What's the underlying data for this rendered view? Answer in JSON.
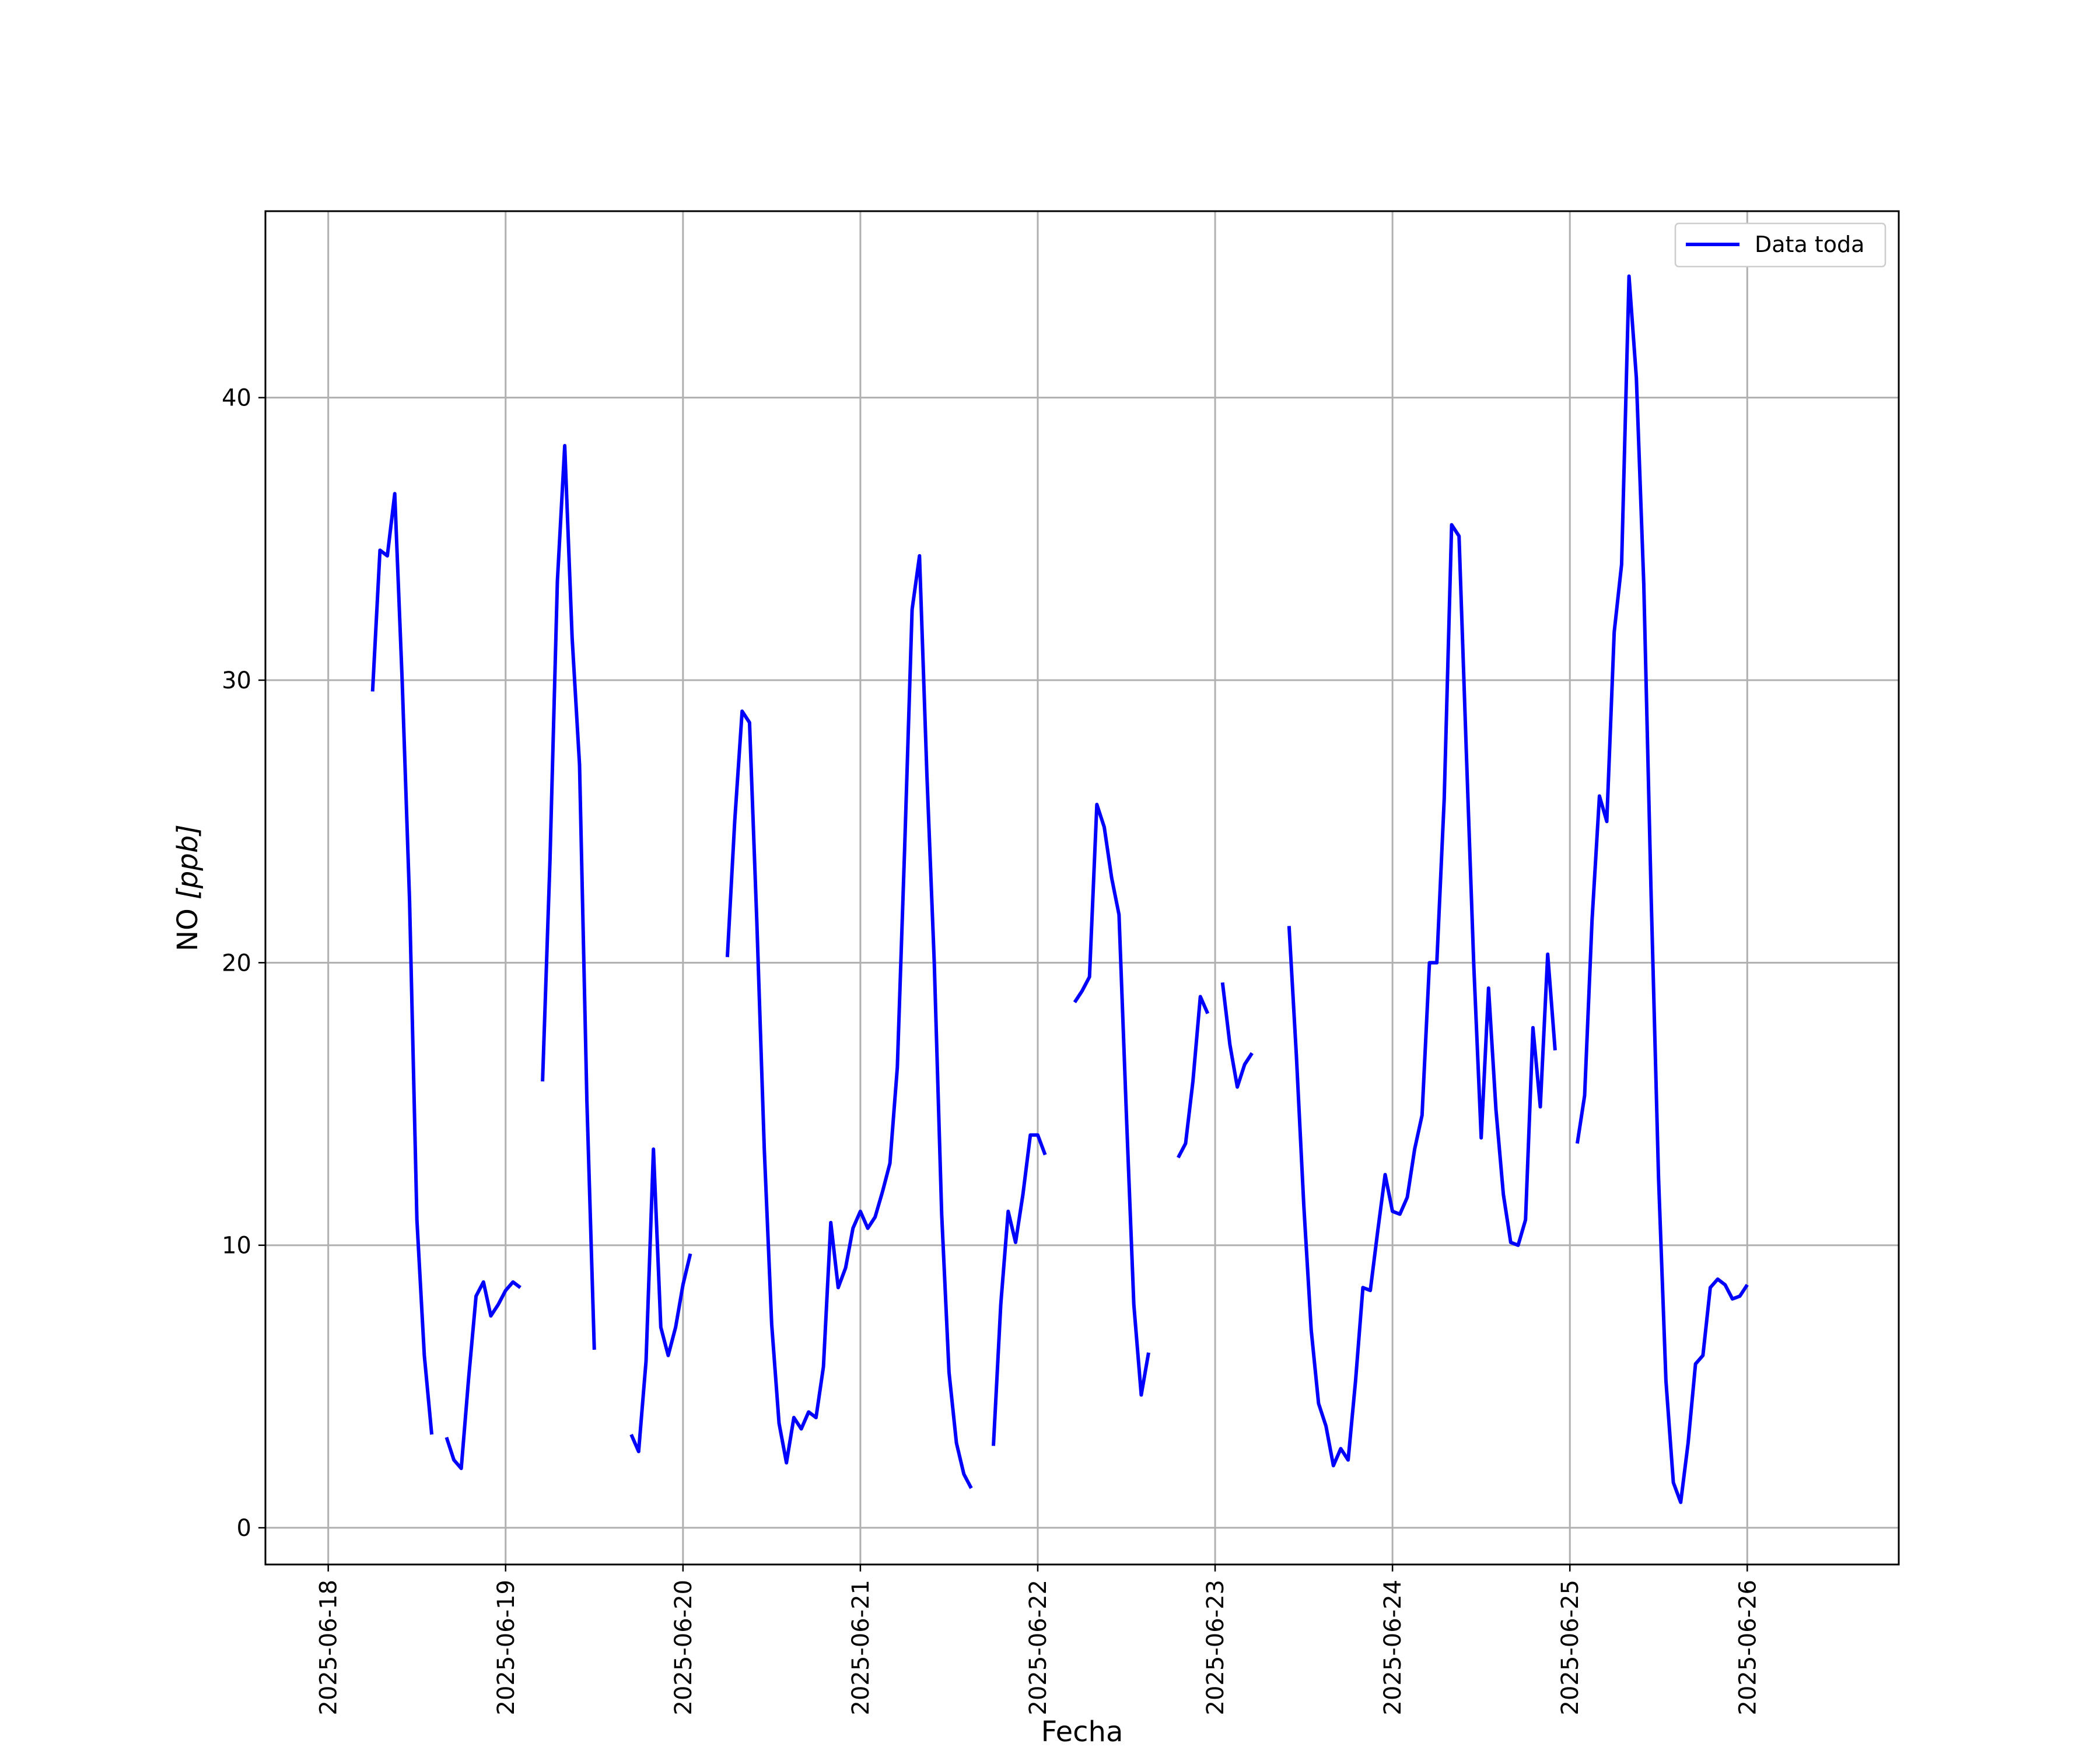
{
  "chart_data": {
    "type": "line",
    "title": "",
    "xlabel": "Fecha",
    "ylabel": "NO [ppb]",
    "ylabel_parts": {
      "name": "NO ",
      "unit": "[ppb]"
    },
    "x_tick_labels": [
      "2025-06-18",
      "2025-06-19",
      "2025-06-20",
      "2025-06-21",
      "2025-06-22",
      "2025-06-23",
      "2025-06-24",
      "2025-06-25",
      "2025-06-26"
    ],
    "y_ticks": [
      0,
      10,
      20,
      30,
      40
    ],
    "xlim": [
      "2025-06-17T15:30",
      "2025-06-26T20:30"
    ],
    "ylim": [
      -1.3,
      46.6
    ],
    "grid": true,
    "legend_position": "top-right",
    "series": [
      {
        "name": "Data toda",
        "color": "#0000ff",
        "segments": [
          [
            [
              "2025-06-18T06:00",
              29.6
            ],
            [
              "2025-06-18T07:00",
              34.6
            ],
            [
              "2025-06-18T08:00",
              34.4
            ],
            [
              "2025-06-18T09:00",
              36.6
            ],
            [
              "2025-06-18T10:00",
              30.0
            ],
            [
              "2025-06-18T11:00",
              22.2
            ],
            [
              "2025-06-18T12:00",
              10.9
            ],
            [
              "2025-06-18T13:00",
              6.1
            ],
            [
              "2025-06-18T14:00",
              3.3
            ]
          ],
          [
            [
              "2025-06-18T16:00",
              3.2
            ],
            [
              "2025-06-18T17:00",
              2.4
            ],
            [
              "2025-06-18T18:00",
              2.1
            ],
            [
              "2025-06-18T19:00",
              5.3
            ],
            [
              "2025-06-18T20:00",
              8.2
            ],
            [
              "2025-06-18T21:00",
              8.7
            ],
            [
              "2025-06-18T22:00",
              7.5
            ],
            [
              "2025-06-18T23:00",
              7.9
            ],
            [
              "2025-06-19T00:00",
              8.4
            ],
            [
              "2025-06-19T01:00",
              8.7
            ],
            [
              "2025-06-19T02:00",
              8.5
            ]
          ],
          [
            [
              "2025-06-19T05:00",
              15.8
            ],
            [
              "2025-06-19T06:00",
              23.6
            ],
            [
              "2025-06-19T07:00",
              33.5
            ],
            [
              "2025-06-19T08:00",
              38.3
            ],
            [
              "2025-06-19T09:00",
              31.5
            ],
            [
              "2025-06-19T10:00",
              27.0
            ],
            [
              "2025-06-19T11:00",
              15.1
            ],
            [
              "2025-06-19T12:00",
              6.3
            ]
          ],
          [
            [
              "2025-06-19T17:00",
              3.3
            ],
            [
              "2025-06-19T18:00",
              2.7
            ],
            [
              "2025-06-19T19:00",
              5.9
            ],
            [
              "2025-06-19T20:00",
              13.4
            ],
            [
              "2025-06-19T21:00",
              7.1
            ],
            [
              "2025-06-19T22:00",
              6.1
            ],
            [
              "2025-06-19T23:00",
              7.1
            ],
            [
              "2025-06-20T00:00",
              8.6
            ],
            [
              "2025-06-20T01:00",
              9.7
            ]
          ],
          [
            [
              "2025-06-20T06:00",
              20.2
            ],
            [
              "2025-06-20T07:00",
              25.0
            ],
            [
              "2025-06-20T08:00",
              28.9
            ],
            [
              "2025-06-20T09:00",
              28.5
            ],
            [
              "2025-06-20T10:00",
              21.4
            ],
            [
              "2025-06-20T11:00",
              13.4
            ],
            [
              "2025-06-20T12:00",
              7.2
            ],
            [
              "2025-06-20T13:00",
              3.7
            ],
            [
              "2025-06-20T14:00",
              2.3
            ],
            [
              "2025-06-20T15:00",
              3.9
            ],
            [
              "2025-06-20T16:00",
              3.5
            ],
            [
              "2025-06-20T17:00",
              4.1
            ],
            [
              "2025-06-20T18:00",
              3.9
            ],
            [
              "2025-06-20T19:00",
              5.7
            ],
            [
              "2025-06-20T20:00",
              10.8
            ],
            [
              "2025-06-20T21:00",
              8.5
            ],
            [
              "2025-06-20T22:00",
              9.2
            ],
            [
              "2025-06-20T23:00",
              10.6
            ],
            [
              "2025-06-21T00:00",
              11.2
            ],
            [
              "2025-06-21T01:00",
              10.6
            ],
            [
              "2025-06-21T02:00",
              11.0
            ],
            [
              "2025-06-21T03:00",
              11.9
            ],
            [
              "2025-06-21T04:00",
              12.9
            ],
            [
              "2025-06-21T05:00",
              16.3
            ],
            [
              "2025-06-21T06:00",
              24.1
            ],
            [
              "2025-06-21T07:00",
              32.5
            ],
            [
              "2025-06-21T08:00",
              34.4
            ],
            [
              "2025-06-21T09:00",
              26.7
            ],
            [
              "2025-06-21T10:00",
              20.0
            ],
            [
              "2025-06-21T11:00",
              11.1
            ],
            [
              "2025-06-21T12:00",
              5.5
            ],
            [
              "2025-06-21T13:00",
              3.0
            ],
            [
              "2025-06-21T14:00",
              1.9
            ],
            [
              "2025-06-21T15:00",
              1.4
            ]
          ],
          [
            [
              "2025-06-21T18:00",
              2.9
            ],
            [
              "2025-06-21T19:00",
              7.9
            ],
            [
              "2025-06-21T20:00",
              11.2
            ],
            [
              "2025-06-21T21:00",
              10.1
            ],
            [
              "2025-06-21T22:00",
              11.8
            ],
            [
              "2025-06-21T23:00",
              13.9
            ],
            [
              "2025-06-22T00:00",
              13.9
            ],
            [
              "2025-06-22T01:00",
              13.2
            ]
          ],
          [
            [
              "2025-06-22T05:00",
              18.6
            ],
            [
              "2025-06-22T06:00",
              19.0
            ],
            [
              "2025-06-22T07:00",
              19.5
            ],
            [
              "2025-06-22T08:00",
              25.6
            ],
            [
              "2025-06-22T09:00",
              24.8
            ],
            [
              "2025-06-22T10:00",
              23.0
            ],
            [
              "2025-06-22T11:00",
              21.7
            ],
            [
              "2025-06-22T12:00",
              14.6
            ],
            [
              "2025-06-22T13:00",
              7.9
            ],
            [
              "2025-06-22T14:00",
              4.7
            ],
            [
              "2025-06-22T15:00",
              6.2
            ]
          ],
          [
            [
              "2025-06-22T19:00",
              13.1
            ],
            [
              "2025-06-22T20:00",
              13.6
            ],
            [
              "2025-06-22T21:00",
              15.8
            ],
            [
              "2025-06-22T22:00",
              18.8
            ],
            [
              "2025-06-22T23:00",
              18.2
            ]
          ],
          [
            [
              "2025-06-23T01:00",
              19.3
            ],
            [
              "2025-06-23T02:00",
              17.1
            ],
            [
              "2025-06-23T03:00",
              15.6
            ],
            [
              "2025-06-23T04:00",
              16.4
            ],
            [
              "2025-06-23T05:00",
              16.8
            ]
          ],
          [
            [
              "2025-06-23T10:00",
              21.3
            ],
            [
              "2025-06-23T11:00",
              16.7
            ],
            [
              "2025-06-23T12:00",
              11.4
            ],
            [
              "2025-06-23T13:00",
              7.0
            ],
            [
              "2025-06-23T14:00",
              4.4
            ],
            [
              "2025-06-23T15:00",
              3.6
            ],
            [
              "2025-06-23T16:00",
              2.2
            ],
            [
              "2025-06-23T17:00",
              2.8
            ],
            [
              "2025-06-23T18:00",
              2.4
            ],
            [
              "2025-06-23T19:00",
              5.2
            ],
            [
              "2025-06-23T20:00",
              8.5
            ],
            [
              "2025-06-23T21:00",
              8.4
            ],
            [
              "2025-06-23T22:00",
              10.5
            ],
            [
              "2025-06-23T23:00",
              12.5
            ],
            [
              "2025-06-24T00:00",
              11.2
            ],
            [
              "2025-06-24T01:00",
              11.1
            ],
            [
              "2025-06-24T02:00",
              11.7
            ],
            [
              "2025-06-24T03:00",
              13.4
            ],
            [
              "2025-06-24T04:00",
              14.6
            ],
            [
              "2025-06-24T05:00",
              20.0
            ],
            [
              "2025-06-24T06:00",
              20.0
            ],
            [
              "2025-06-24T07:00",
              25.8
            ],
            [
              "2025-06-24T08:00",
              35.5
            ],
            [
              "2025-06-24T09:00",
              35.1
            ],
            [
              "2025-06-24T10:00",
              27.4
            ],
            [
              "2025-06-24T11:00",
              19.9
            ],
            [
              "2025-06-24T12:00",
              13.8
            ],
            [
              "2025-06-24T13:00",
              19.1
            ],
            [
              "2025-06-24T14:00",
              14.8
            ],
            [
              "2025-06-24T15:00",
              11.8
            ],
            [
              "2025-06-24T16:00",
              10.1
            ],
            [
              "2025-06-24T17:00",
              10.0
            ],
            [
              "2025-06-24T18:00",
              10.9
            ],
            [
              "2025-06-24T19:00",
              17.7
            ],
            [
              "2025-06-24T20:00",
              14.9
            ],
            [
              "2025-06-24T21:00",
              20.3
            ],
            [
              "2025-06-24T22:00",
              16.9
            ]
          ],
          [
            [
              "2025-06-25T01:00",
              13.6
            ],
            [
              "2025-06-25T02:00",
              15.3
            ],
            [
              "2025-06-25T03:00",
              21.5
            ],
            [
              "2025-06-25T04:00",
              25.9
            ],
            [
              "2025-06-25T05:00",
              25.0
            ],
            [
              "2025-06-25T06:00",
              31.7
            ],
            [
              "2025-06-25T07:00",
              34.1
            ],
            [
              "2025-06-25T08:00",
              44.3
            ],
            [
              "2025-06-25T09:00",
              40.7
            ],
            [
              "2025-06-25T10:00",
              33.4
            ],
            [
              "2025-06-25T11:00",
              22.3
            ],
            [
              "2025-06-25T12:00",
              12.4
            ],
            [
              "2025-06-25T13:00",
              5.2
            ],
            [
              "2025-06-25T14:00",
              1.6
            ],
            [
              "2025-06-25T15:00",
              0.9
            ],
            [
              "2025-06-25T16:00",
              3.0
            ],
            [
              "2025-06-25T17:00",
              5.8
            ],
            [
              "2025-06-25T18:00",
              6.1
            ],
            [
              "2025-06-25T19:00",
              8.5
            ],
            [
              "2025-06-25T20:00",
              8.8
            ],
            [
              "2025-06-25T21:00",
              8.6
            ],
            [
              "2025-06-25T22:00",
              8.1
            ],
            [
              "2025-06-25T23:00",
              8.2
            ],
            [
              "2025-06-26T00:00",
              8.6
            ]
          ]
        ]
      }
    ]
  }
}
